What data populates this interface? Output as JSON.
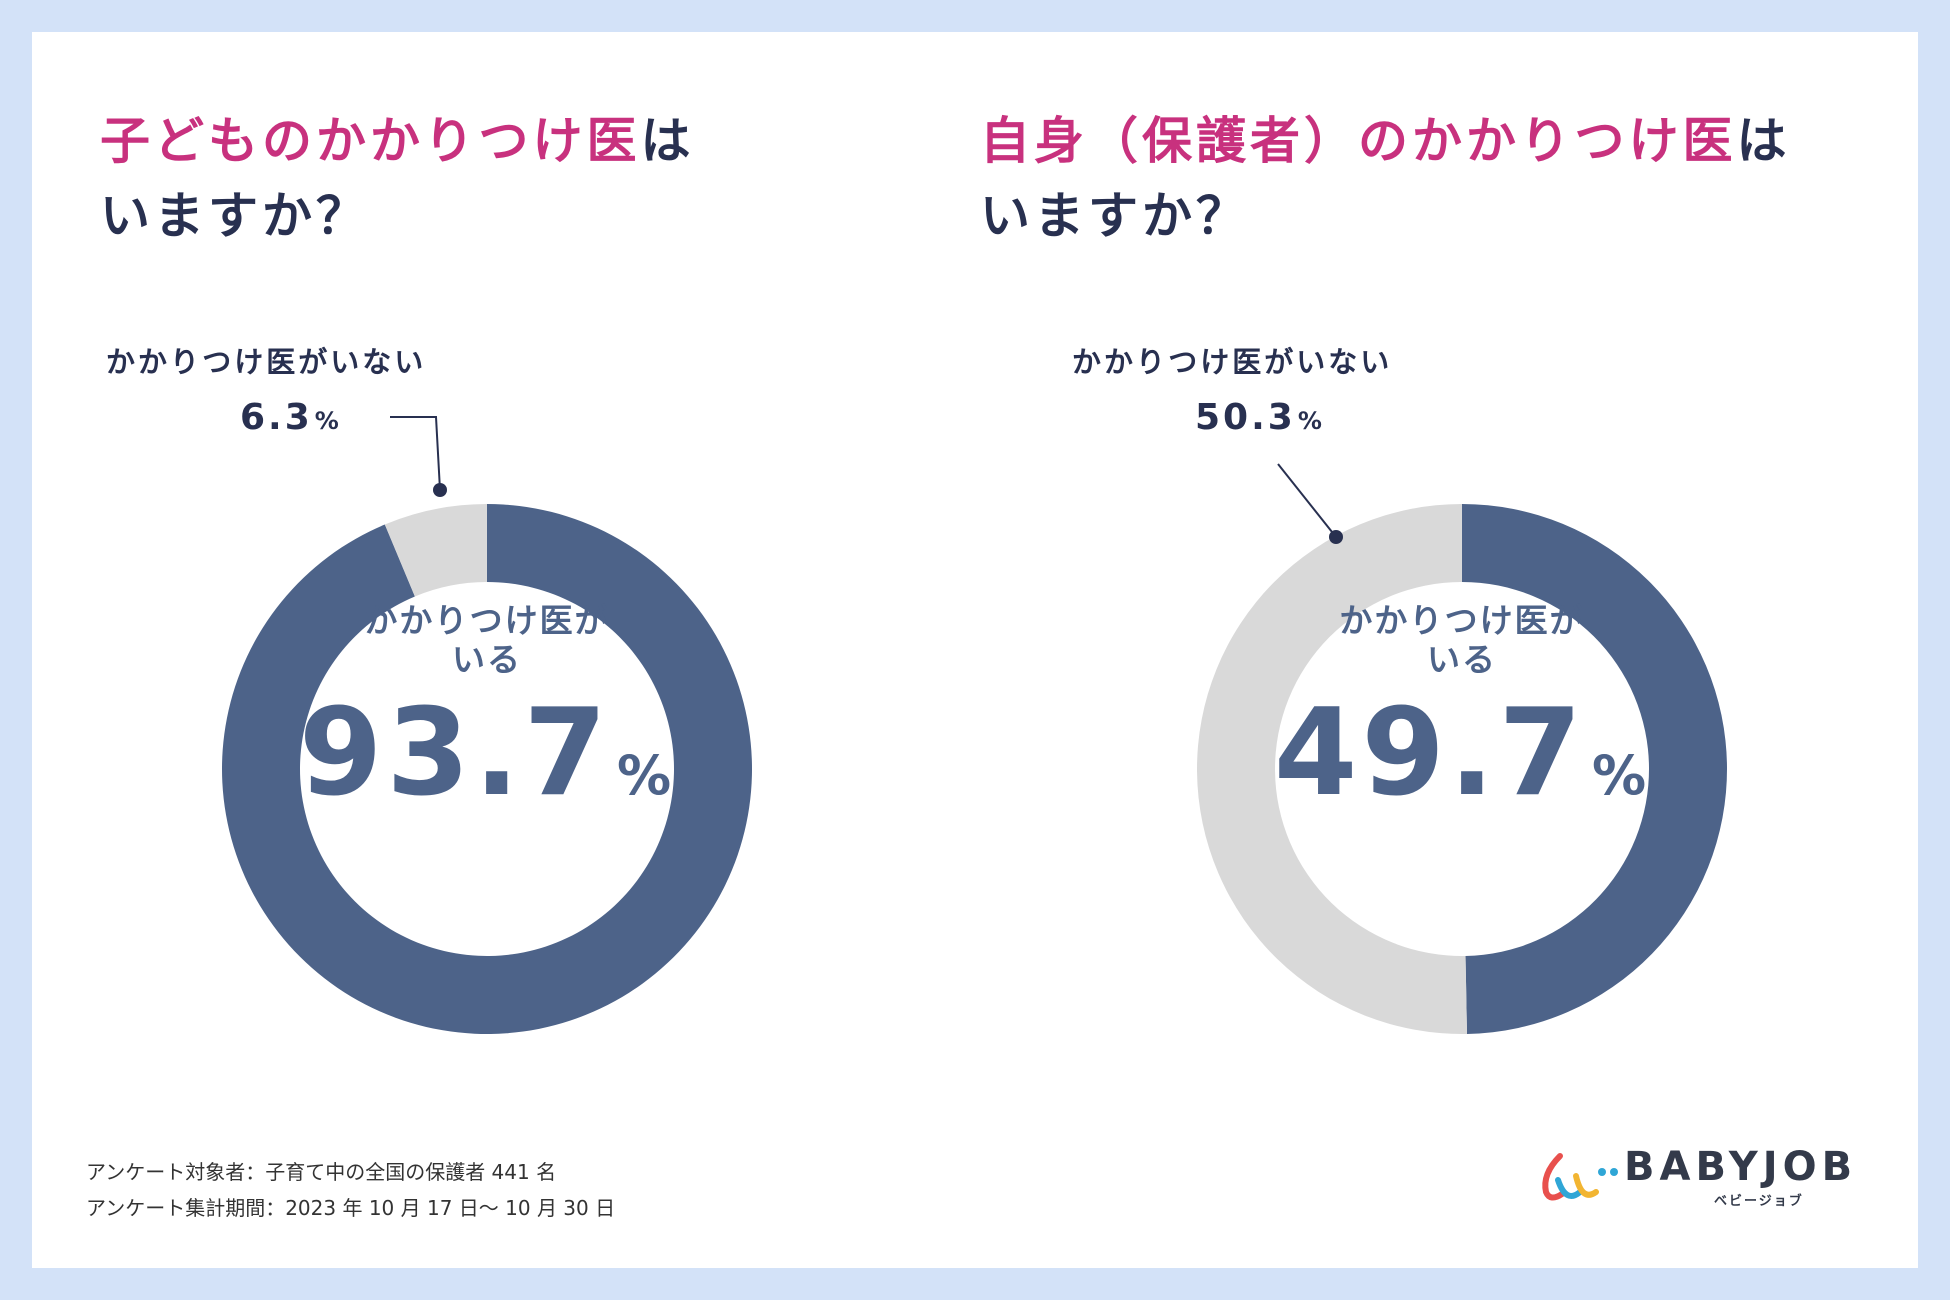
{
  "colors": {
    "primary": "#4d6389",
    "secondary": "#d9d9d9",
    "accent": "#c8317e",
    "text": "#283050"
  },
  "chart_data": [
    {
      "type": "pie",
      "title_highlight": "子どものかかりつけ医",
      "title_rest": "は",
      "title_line2": "いますか？",
      "slices": [
        {
          "label": "かかりつけ医がいる",
          "value": 93.7
        },
        {
          "label": "かかりつけ医がいない",
          "value": 6.3
        }
      ],
      "center_label_line1": "かかりつけ医が",
      "center_label_line2": "いる",
      "center_value": "93.7",
      "minor_label": "かかりつけ医がいない",
      "minor_value": "6.3",
      "unit": "%"
    },
    {
      "type": "pie",
      "title_highlight": "自身（保護者）のかかりつけ医",
      "title_rest": "は",
      "title_line2": "いますか？",
      "slices": [
        {
          "label": "かかりつけ医がいる",
          "value": 49.7
        },
        {
          "label": "かかりつけ医がいない",
          "value": 50.3
        }
      ],
      "center_label_line1": "かかりつけ医が",
      "center_label_line2": "いる",
      "center_value": "49.7",
      "minor_label": "かかりつけ医がいない",
      "minor_value": "50.3",
      "unit": "%"
    }
  ],
  "footer": {
    "line1": "アンケート対象者：子育て中の全国の保護者 441 名",
    "line2": "アンケート集計期間：2023 年 10 月 17 日～ 10 月 30 日"
  },
  "logo": {
    "name": "BABYJOB",
    "sub": "ベビージョブ"
  }
}
